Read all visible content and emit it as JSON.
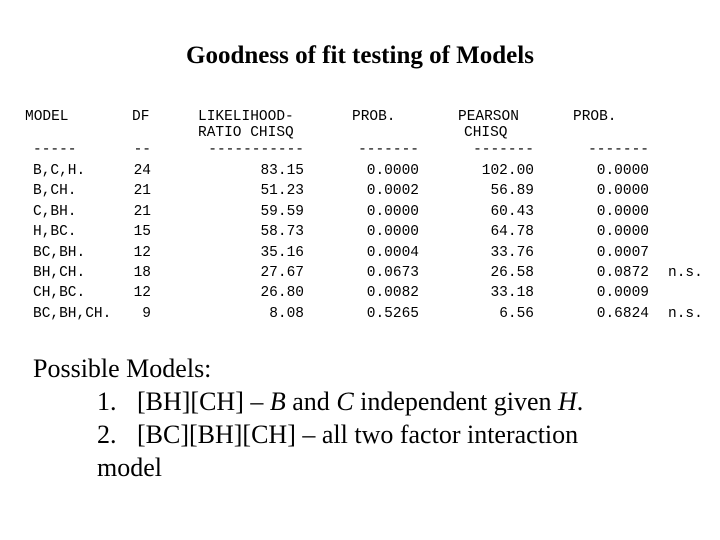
{
  "title": "Goodness of fit testing of Models",
  "table": {
    "header": [
      [
        "MODEL"
      ],
      [
        "DF"
      ],
      [
        "LIKELIHOOD-",
        "RATIO CHISQ"
      ],
      [
        "PROB."
      ],
      [
        "PEARSON",
        "CHISQ"
      ],
      [
        "PROB."
      ]
    ],
    "rule": [
      "-----",
      "--",
      "-----------",
      "-------",
      "-------",
      "-------"
    ],
    "rows": [
      [
        "B,C,H.",
        "24",
        "83.15",
        "0.0000",
        "102.00",
        "0.0000",
        null
      ],
      [
        "B,CH.",
        "21",
        "51.23",
        "0.0002",
        "56.89",
        "0.0000",
        null
      ],
      [
        "C,BH.",
        "21",
        "59.59",
        "0.0000",
        "60.43",
        "0.0000",
        null
      ],
      [
        "H,BC.",
        "15",
        "58.73",
        "0.0000",
        "64.78",
        "0.0000",
        null
      ],
      [
        "BC,BH.",
        "12",
        "35.16",
        "0.0004",
        "33.76",
        "0.0007",
        null
      ],
      [
        "BH,CH.",
        "18",
        "27.67",
        "0.0673",
        "26.58",
        "0.0872",
        "n.s."
      ],
      [
        "CH,BC.",
        "12",
        "26.80",
        "0.0082",
        "33.18",
        "0.0009",
        null
      ],
      [
        "BC,BH,CH.",
        "9",
        "8.08",
        "0.5265",
        "6.56",
        "0.6824",
        "n.s."
      ]
    ]
  },
  "models": {
    "heading": "Possible Models:",
    "items": [
      {
        "number": "1.",
        "text": [
          "[BH][CH] – ",
          "B",
          " and ",
          "C",
          " independent given ",
          "H",
          "."
        ]
      },
      {
        "number": "2.",
        "text": [
          "[BC][BH][CH] – all two factor interaction model"
        ]
      }
    ]
  }
}
